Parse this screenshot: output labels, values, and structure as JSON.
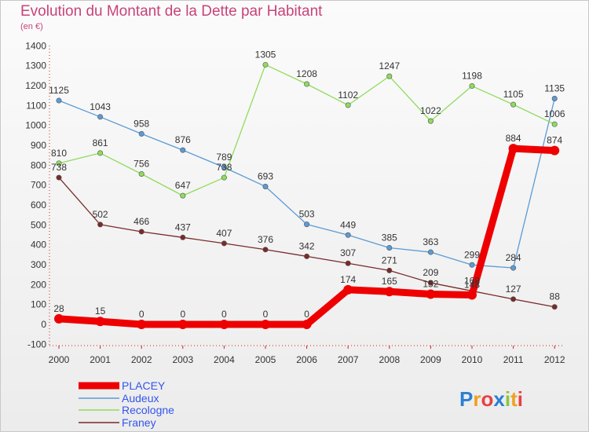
{
  "title": "Evolution du Montant de la Dette par Habitant",
  "unit": "(en €)",
  "logo": "Proxiti",
  "chart_data": {
    "type": "line",
    "title": "Evolution du Montant de la Dette par Habitant",
    "ylabel": "(en €)",
    "xlabel": "",
    "x": [
      2000,
      2001,
      2002,
      2003,
      2004,
      2005,
      2006,
      2007,
      2008,
      2009,
      2010,
      2011,
      2012
    ],
    "ylim": [
      -100,
      1400
    ],
    "yticks": [
      -100,
      0,
      100,
      200,
      300,
      400,
      500,
      600,
      700,
      800,
      900,
      1000,
      1100,
      1200,
      1300,
      1400
    ],
    "grid": false,
    "legend": "bottom-left",
    "series": [
      {
        "name": "PLACEY",
        "color": "#ee0000",
        "values": [
          28,
          15,
          0,
          0,
          0,
          0,
          0,
          174,
          165,
          152,
          148,
          884,
          874
        ]
      },
      {
        "name": "Audeux",
        "color": "#5b9bd5",
        "values": [
          1125,
          1043,
          958,
          876,
          789,
          693,
          503,
          449,
          385,
          363,
          299,
          284,
          1135
        ]
      },
      {
        "name": "Recologne",
        "color": "#8fdc5c",
        "values": [
          810,
          861,
          756,
          647,
          738,
          1305,
          1208,
          1102,
          1247,
          1022,
          1198,
          1105,
          1006
        ]
      },
      {
        "name": "Franey",
        "color": "#7a2a2a",
        "values": [
          738,
          502,
          466,
          437,
          407,
          376,
          342,
          307,
          271,
          209,
          168,
          127,
          88
        ]
      }
    ]
  }
}
